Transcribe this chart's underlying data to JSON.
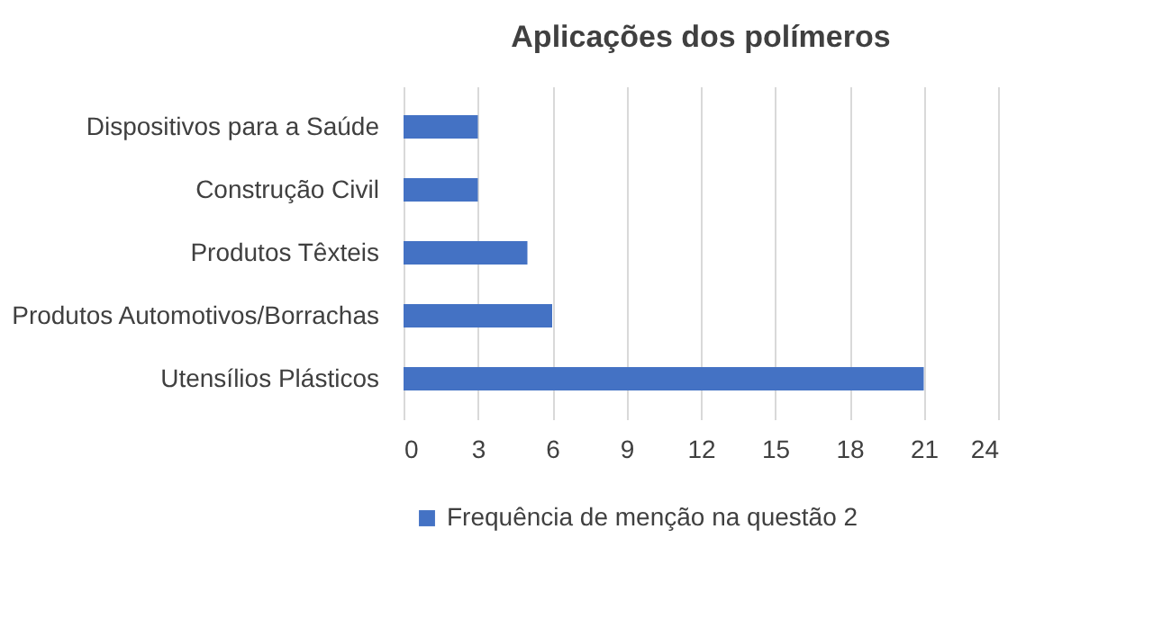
{
  "chart_data": {
    "type": "bar",
    "orientation": "horizontal",
    "title": "Aplicações dos polímeros",
    "categories": [
      "Dispositivos para a Saúde",
      "Construção Civil",
      "Produtos Têxteis",
      "Produtos Automotivos/Borrachas",
      "Utensílios Plásticos"
    ],
    "series": [
      {
        "name": "Frequência de menção na questão 2",
        "color": "#4472c4",
        "values": [
          3,
          3,
          5,
          6,
          21
        ]
      }
    ],
    "xlim": [
      0,
      24
    ],
    "xticks": [
      0,
      3,
      6,
      9,
      12,
      15,
      18,
      21,
      24
    ],
    "grid": "x",
    "legend": "bottom"
  }
}
